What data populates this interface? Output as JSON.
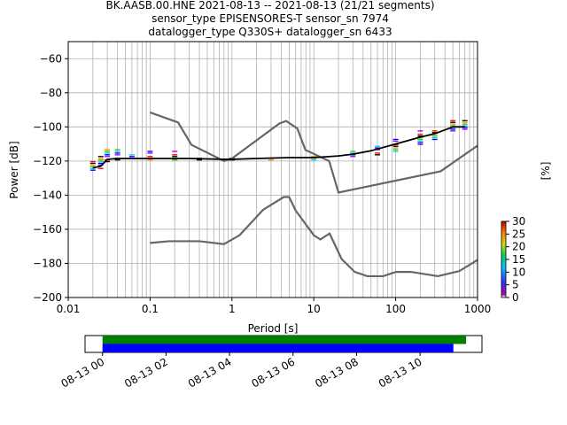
{
  "figure": {
    "title_lines": [
      "BK.AASB.00.HNE   2021-08-13 -- 2021-08-13  (21/21 segments)",
      "sensor_type EPISENSORES-T sensor_sn 7974",
      "datalogger_type Q330S+ datalogger_sn 6433"
    ]
  },
  "chart_data": [
    {
      "type": "heatmap",
      "title": "BK.AASB.00.HNE   2021-08-13 -- 2021-08-13  (21/21 segments)",
      "xlabel": "Period [s]",
      "ylabel": "Power [dB]",
      "xscale": "log",
      "xlim": [
        0.01,
        1000
      ],
      "ylim": [
        -200,
        -50
      ],
      "xticks": [
        0.01,
        0.1,
        1,
        10,
        100,
        1000
      ],
      "xtick_labels": [
        "0.01",
        "0.1",
        "1",
        "10",
        "100",
        "1000"
      ],
      "yticks": [
        -200,
        -180,
        -160,
        -140,
        -120,
        -100,
        -80,
        -60
      ],
      "ytick_labels": [
        "−200",
        "−180",
        "−160",
        "−140",
        "−120",
        "−100",
        "−80",
        "−60"
      ],
      "grid": true,
      "colorbar": {
        "label": "[%]",
        "range": [
          0,
          30
        ],
        "ticks": [
          0,
          5,
          10,
          15,
          20,
          25,
          30
        ],
        "tick_labels": [
          "0",
          "5",
          "10",
          "15",
          "20",
          "25",
          "30"
        ]
      },
      "mode_line": {
        "x": [
          0.02,
          0.025,
          0.03,
          0.04,
          0.1,
          0.3,
          0.8,
          1,
          2,
          5,
          10,
          20,
          30,
          50,
          100,
          200,
          300,
          500,
          700
        ],
        "y": [
          -124,
          -123,
          -119,
          -118.5,
          -118.5,
          -118.5,
          -119,
          -119,
          -118.5,
          -118,
          -118,
          -117,
          -116,
          -114,
          -110,
          -106,
          -104,
          -100,
          -100
        ]
      },
      "psd_density_ranges": [
        {
          "x": 0.02,
          "ymin": -126,
          "ymax": -120
        },
        {
          "x": 0.025,
          "ymin": -125,
          "ymax": -117
        },
        {
          "x": 0.03,
          "ymin": -121,
          "ymax": -113
        },
        {
          "x": 0.04,
          "ymin": -120,
          "ymax": -113
        },
        {
          "x": 0.06,
          "ymin": -120,
          "ymax": -116
        },
        {
          "x": 0.1,
          "ymin": -120,
          "ymax": -114
        },
        {
          "x": 0.2,
          "ymin": -120,
          "ymax": -114
        },
        {
          "x": 0.4,
          "ymin": -120,
          "ymax": -117
        },
        {
          "x": 1,
          "ymin": -120,
          "ymax": -118
        },
        {
          "x": 3,
          "ymin": -120,
          "ymax": -118
        },
        {
          "x": 10,
          "ymin": -120,
          "ymax": -117
        },
        {
          "x": 30,
          "ymin": -119,
          "ymax": -114
        },
        {
          "x": 60,
          "ymin": -117,
          "ymax": -111
        },
        {
          "x": 100,
          "ymin": -115,
          "ymax": -107
        },
        {
          "x": 200,
          "ymin": -111,
          "ymax": -102
        },
        {
          "x": 300,
          "ymin": -108,
          "ymax": -101
        },
        {
          "x": 500,
          "ymin": -104,
          "ymax": -96
        },
        {
          "x": 700,
          "ymin": -102,
          "ymax": -96
        }
      ],
      "noise_models": [
        {
          "name": "high-noise",
          "x": [
            0.1,
            0.22,
            0.32,
            0.8,
            1,
            3.8,
            4.6,
            6.3,
            7.9,
            15.4,
            20,
            354.8,
            1000
          ],
          "y": [
            -91.5,
            -97.4,
            -110.5,
            -120,
            -118.5,
            -98,
            -96.5,
            -101,
            -113.5,
            -120,
            -138.5,
            -126,
            -111
          ]
        },
        {
          "name": "low-noise",
          "x": [
            0.1,
            0.17,
            0.4,
            0.8,
            1.24,
            2.4,
            4.3,
            5,
            6,
            10,
            12,
            15.6,
            21.9,
            31.6,
            45,
            70,
            101,
            154,
            328,
            600,
            1000
          ],
          "y": [
            -168,
            -167,
            -167,
            -168.7,
            -163.5,
            -148.6,
            -141.1,
            -141.1,
            -149,
            -163.5,
            -166,
            -162.5,
            -177.5,
            -185,
            -187.5,
            -187.5,
            -185,
            -185,
            -187.5,
            -184.5,
            -178
          ]
        }
      ]
    },
    {
      "type": "timeline",
      "description": "data availability",
      "xtick_labels": [
        "08-13 00",
        "08-13 02",
        "08-13 04",
        "08-13 06",
        "08-13 08",
        "08-13 10"
      ],
      "xtick_hours": [
        0,
        2,
        4,
        6,
        8,
        10
      ],
      "xlim_hours": [
        -0.55,
        11.95
      ],
      "bars": [
        {
          "color": "#008000",
          "start_hour": 0,
          "end_hour": 11.45
        },
        {
          "color": "#0000ff",
          "start_hour": 0,
          "end_hour": 11.05
        }
      ]
    }
  ]
}
